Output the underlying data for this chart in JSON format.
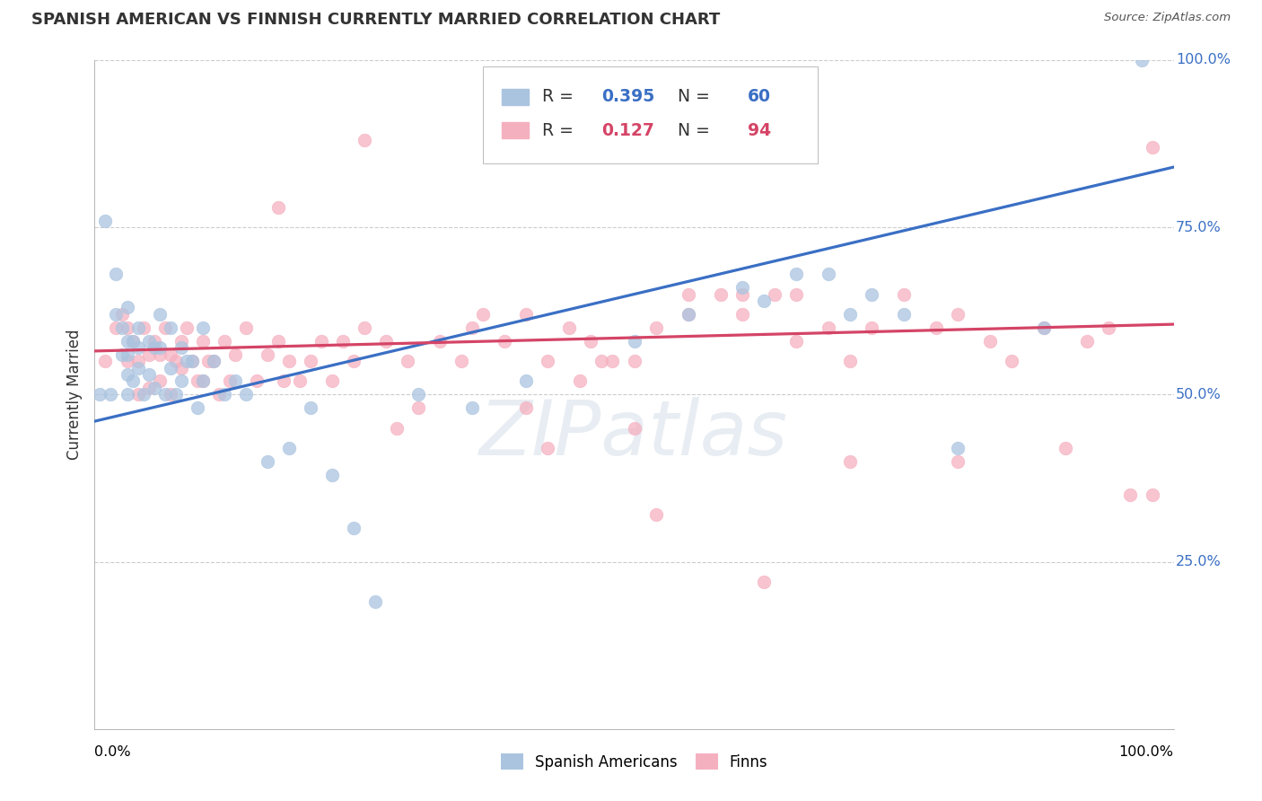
{
  "title": "SPANISH AMERICAN VS FINNISH CURRENTLY MARRIED CORRELATION CHART",
  "source": "Source: ZipAtlas.com",
  "ylabel": "Currently Married",
  "blue_R": "0.395",
  "blue_N": "60",
  "pink_R": "0.127",
  "pink_N": "94",
  "blue_scatter_color": "#aac4e0",
  "pink_scatter_color": "#f5b0c0",
  "blue_line_color": "#3a6fc4",
  "pink_line_color": "#d44466",
  "blue_label": "Spanish Americans",
  "pink_label": "Finns",
  "blue_line": [
    0.0,
    1.0,
    0.46,
    0.84
  ],
  "pink_line": [
    0.0,
    1.0,
    0.565,
    0.605
  ],
  "blue_x": [
    0.005,
    0.01,
    0.015,
    0.02,
    0.02,
    0.025,
    0.025,
    0.03,
    0.03,
    0.03,
    0.03,
    0.03,
    0.035,
    0.035,
    0.04,
    0.04,
    0.04,
    0.045,
    0.05,
    0.05,
    0.055,
    0.055,
    0.06,
    0.06,
    0.065,
    0.07,
    0.07,
    0.075,
    0.08,
    0.08,
    0.085,
    0.09,
    0.095,
    0.1,
    0.1,
    0.11,
    0.12,
    0.13,
    0.14,
    0.16,
    0.18,
    0.2,
    0.22,
    0.24,
    0.26,
    0.3,
    0.35,
    0.4,
    0.5,
    0.55,
    0.6,
    0.62,
    0.65,
    0.68,
    0.7,
    0.72,
    0.75,
    0.8,
    0.88,
    0.97
  ],
  "blue_y": [
    0.5,
    0.76,
    0.5,
    0.68,
    0.62,
    0.6,
    0.56,
    0.63,
    0.58,
    0.56,
    0.53,
    0.5,
    0.58,
    0.52,
    0.6,
    0.57,
    0.54,
    0.5,
    0.58,
    0.53,
    0.57,
    0.51,
    0.62,
    0.57,
    0.5,
    0.6,
    0.54,
    0.5,
    0.57,
    0.52,
    0.55,
    0.55,
    0.48,
    0.6,
    0.52,
    0.55,
    0.5,
    0.52,
    0.5,
    0.4,
    0.42,
    0.48,
    0.38,
    0.3,
    0.19,
    0.5,
    0.48,
    0.52,
    0.58,
    0.62,
    0.66,
    0.64,
    0.68,
    0.68,
    0.62,
    0.65,
    0.62,
    0.42,
    0.6,
    1.0
  ],
  "pink_x": [
    0.01,
    0.02,
    0.025,
    0.03,
    0.03,
    0.035,
    0.04,
    0.04,
    0.045,
    0.05,
    0.05,
    0.055,
    0.06,
    0.06,
    0.065,
    0.07,
    0.07,
    0.075,
    0.08,
    0.08,
    0.085,
    0.09,
    0.095,
    0.1,
    0.1,
    0.105,
    0.11,
    0.115,
    0.12,
    0.125,
    0.13,
    0.14,
    0.15,
    0.16,
    0.17,
    0.175,
    0.18,
    0.19,
    0.2,
    0.21,
    0.22,
    0.23,
    0.24,
    0.25,
    0.27,
    0.28,
    0.29,
    0.3,
    0.32,
    0.34,
    0.36,
    0.38,
    0.4,
    0.42,
    0.44,
    0.46,
    0.48,
    0.5,
    0.52,
    0.55,
    0.58,
    0.6,
    0.63,
    0.65,
    0.68,
    0.7,
    0.72,
    0.75,
    0.78,
    0.8,
    0.83,
    0.85,
    0.88,
    0.9,
    0.92,
    0.94,
    0.96,
    0.98,
    0.5,
    0.45,
    0.4,
    0.55,
    0.6,
    0.65,
    0.52,
    0.42,
    0.35,
    0.25,
    0.17,
    0.47,
    0.62,
    0.7,
    0.8,
    0.98
  ],
  "pink_y": [
    0.55,
    0.6,
    0.62,
    0.55,
    0.6,
    0.58,
    0.55,
    0.5,
    0.6,
    0.56,
    0.51,
    0.58,
    0.56,
    0.52,
    0.6,
    0.56,
    0.5,
    0.55,
    0.58,
    0.54,
    0.6,
    0.55,
    0.52,
    0.58,
    0.52,
    0.55,
    0.55,
    0.5,
    0.58,
    0.52,
    0.56,
    0.6,
    0.52,
    0.56,
    0.58,
    0.52,
    0.55,
    0.52,
    0.55,
    0.58,
    0.52,
    0.58,
    0.55,
    0.6,
    0.58,
    0.45,
    0.55,
    0.48,
    0.58,
    0.55,
    0.62,
    0.58,
    0.62,
    0.55,
    0.6,
    0.58,
    0.55,
    0.55,
    0.6,
    0.62,
    0.65,
    0.62,
    0.65,
    0.58,
    0.6,
    0.55,
    0.6,
    0.65,
    0.6,
    0.62,
    0.58,
    0.55,
    0.6,
    0.42,
    0.58,
    0.6,
    0.35,
    0.35,
    0.45,
    0.52,
    0.48,
    0.65,
    0.65,
    0.65,
    0.32,
    0.42,
    0.6,
    0.88,
    0.78,
    0.55,
    0.22,
    0.4,
    0.4,
    0.87
  ]
}
